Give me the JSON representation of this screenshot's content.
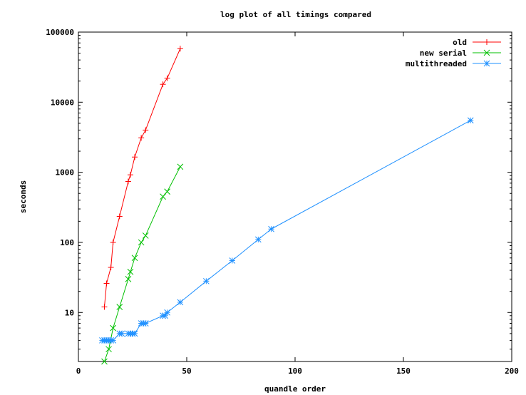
{
  "chart_data": {
    "type": "line",
    "title": "log plot of all timings compared",
    "xlabel": "quandle order",
    "ylabel": "seconds",
    "xlim": [
      0,
      200
    ],
    "ylim": [
      2,
      100000
    ],
    "y_scale": "log",
    "x_ticks": [
      0,
      50,
      100,
      150,
      200
    ],
    "y_ticks": [
      10,
      100,
      1000,
      10000,
      100000
    ],
    "legend_position": "top-right",
    "series": [
      {
        "name": "old",
        "color": "#ff0000",
        "marker": "plus",
        "points": [
          [
            12,
            12
          ],
          [
            13,
            26
          ],
          [
            15,
            44
          ],
          [
            16,
            100
          ],
          [
            19,
            235
          ],
          [
            23,
            740
          ],
          [
            24,
            920
          ],
          [
            26,
            1650
          ],
          [
            29,
            3100
          ],
          [
            31,
            4000
          ],
          [
            39,
            18000
          ],
          [
            41,
            22000
          ],
          [
            47,
            58000
          ]
        ]
      },
      {
        "name": "new serial",
        "color": "#00c000",
        "marker": "x",
        "points": [
          [
            12,
            2
          ],
          [
            14,
            3
          ],
          [
            16,
            6
          ],
          [
            19,
            12
          ],
          [
            23,
            30
          ],
          [
            24,
            38
          ],
          [
            26,
            60
          ],
          [
            29,
            100
          ],
          [
            31,
            125
          ],
          [
            39,
            450
          ],
          [
            41,
            530
          ],
          [
            47,
            1200
          ]
        ]
      },
      {
        "name": "multithreaded",
        "color": "#1e90ff",
        "marker": "star",
        "points": [
          [
            11,
            4
          ],
          [
            12,
            4
          ],
          [
            13,
            4
          ],
          [
            14,
            4
          ],
          [
            15,
            4
          ],
          [
            16,
            4
          ],
          [
            19,
            5
          ],
          [
            20,
            5
          ],
          [
            23,
            5
          ],
          [
            24,
            5
          ],
          [
            25,
            5
          ],
          [
            26,
            5
          ],
          [
            29,
            7
          ],
          [
            30,
            7
          ],
          [
            31,
            7
          ],
          [
            39,
            9
          ],
          [
            40,
            9
          ],
          [
            41,
            10
          ],
          [
            47,
            14
          ],
          [
            59,
            28
          ],
          [
            71,
            55
          ],
          [
            83,
            110
          ],
          [
            89,
            155
          ],
          [
            181,
            5500
          ]
        ]
      }
    ]
  }
}
